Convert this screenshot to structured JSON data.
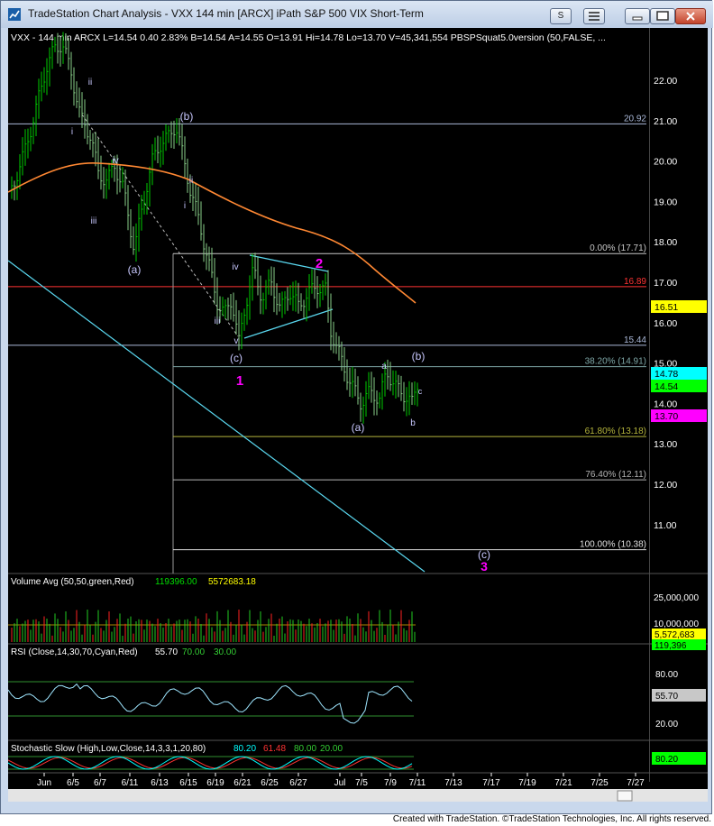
{
  "window": {
    "title": "TradeStation Chart Analysis - VXX 144 min [ARCX] iPath S&P 500 VIX Short-Term",
    "buttons": {
      "s_label": "S",
      "menu_label": "☰"
    }
  },
  "header": {
    "symbol_line": "VXX - 144 min  ARCX  L=14.54  0.40  2.83%  B=14.54  A=14.55  O=13.91  Hi=14.78  Lo=13.70  V=45,341,554  PBSPSquat5.0version (50,FALSE, ...",
    "close_price": 14.54
  },
  "price_axis": {
    "ticks": [
      "22.00",
      "21.00",
      "20.00",
      "19.00",
      "18.00",
      "17.00",
      "16.00",
      "15.00",
      "14.00",
      "13.00",
      "12.00",
      "11.00"
    ],
    "badges": [
      {
        "label": "16.51",
        "value": 16.51,
        "bg": "#ffff00",
        "fg": "#000000"
      },
      {
        "label": "14.78",
        "value": 14.78,
        "bg": "#00ffff",
        "fg": "#000000"
      },
      {
        "label": "14.54",
        "value": 14.54,
        "bg": "#00ff00",
        "fg": "#000000"
      },
      {
        "label": "13.70",
        "value": 13.7,
        "bg": "#ff00ff",
        "fg": "#000000"
      }
    ]
  },
  "levels": [
    {
      "label": "20.92",
      "value": 20.92,
      "color": "#aab8d8"
    },
    {
      "label": "16.89",
      "value": 16.89,
      "color": "#ff3333"
    },
    {
      "label": "15.44",
      "value": 15.44,
      "color": "#aab8d8"
    }
  ],
  "fib_levels": [
    {
      "label": "0.00% (17.71)",
      "value": 17.71
    },
    {
      "label": "38.20% (14.91)",
      "value": 14.91
    },
    {
      "label": "61.80% (13.18)",
      "value": 13.18
    },
    {
      "label": "76.40% (12.11)",
      "value": 12.11
    },
    {
      "label": "100.00% (10.38)",
      "value": 10.38
    }
  ],
  "wave_labels": [
    {
      "text": "ii",
      "color": "#c8c8ff"
    },
    {
      "text": "i",
      "color": "#c8c8ff"
    },
    {
      "text": "iv",
      "color": "#c8c8ff"
    },
    {
      "text": "iii",
      "color": "#c8c8ff"
    },
    {
      "text": "(a)",
      "color": "#c8c8ff"
    },
    {
      "text": "(b)",
      "color": "#c8c8ff"
    },
    {
      "text": "ii",
      "color": "#c8c8ff"
    },
    {
      "text": "i",
      "color": "#c8c8ff"
    },
    {
      "text": "iv",
      "color": "#c8c8ff"
    },
    {
      "text": "iii",
      "color": "#c8c8ff"
    },
    {
      "text": "v",
      "color": "#c8c8ff"
    },
    {
      "text": "(c)",
      "color": "#c8c8ff"
    },
    {
      "text": "1",
      "color": "#ff00ff"
    },
    {
      "text": "2",
      "color": "#ff00ff"
    },
    {
      "text": "a",
      "color": "#c8c8ff"
    },
    {
      "text": "(b)",
      "color": "#c8c8ff"
    },
    {
      "text": "c",
      "color": "#c8c8ff"
    },
    {
      "text": "(a)",
      "color": "#c8c8ff"
    },
    {
      "text": "b",
      "color": "#c8c8ff"
    },
    {
      "text": "(c)",
      "color": "#c8c8ff"
    },
    {
      "text": "3",
      "color": "#ff00ff"
    }
  ],
  "volume": {
    "title": "Volume Avg (50,50,green,Red)",
    "value1": "119396.00",
    "value2": "5572683.18",
    "ticks": [
      "25,000,000",
      "10,000,000"
    ],
    "badges": [
      {
        "label": "5,572,683",
        "bg": "#ffff00"
      },
      {
        "label": "119,396",
        "bg": "#00ff00"
      }
    ]
  },
  "rsi": {
    "title": "RSI (Close,14,30,70,Cyan,Red)",
    "value": "55.70",
    "ob": "70.00",
    "os": "30.00",
    "ticks": [
      "80.00",
      "20.00"
    ],
    "badge": "55.70"
  },
  "stochastic": {
    "title": "Stochastic Slow (High,Low,Close,14,3,3,1,20,80)",
    "k": "80.20",
    "d": "61.48",
    "ob": "80.00",
    "os": "20.00",
    "badge": "80.20"
  },
  "time_axis": {
    "labels": [
      "Jun",
      "6/5",
      "6/7",
      "6/11",
      "6/13",
      "6/15",
      "6/19",
      "6/21",
      "6/25",
      "6/27",
      "Jul",
      "7/5",
      "7/9",
      "7/11",
      "7/13",
      "7/17",
      "7/19",
      "7/21",
      "7/25",
      "7/27"
    ]
  },
  "colors": {
    "price_up": "#00cc00",
    "price_down": "#8acf8a",
    "ma": "#ff8833",
    "trend": "#5ad8f0",
    "rsi": "#9ee6ff"
  },
  "footer": "Created with TradeStation. ©TradeStation Technologies, Inc. All rights reserved."
}
